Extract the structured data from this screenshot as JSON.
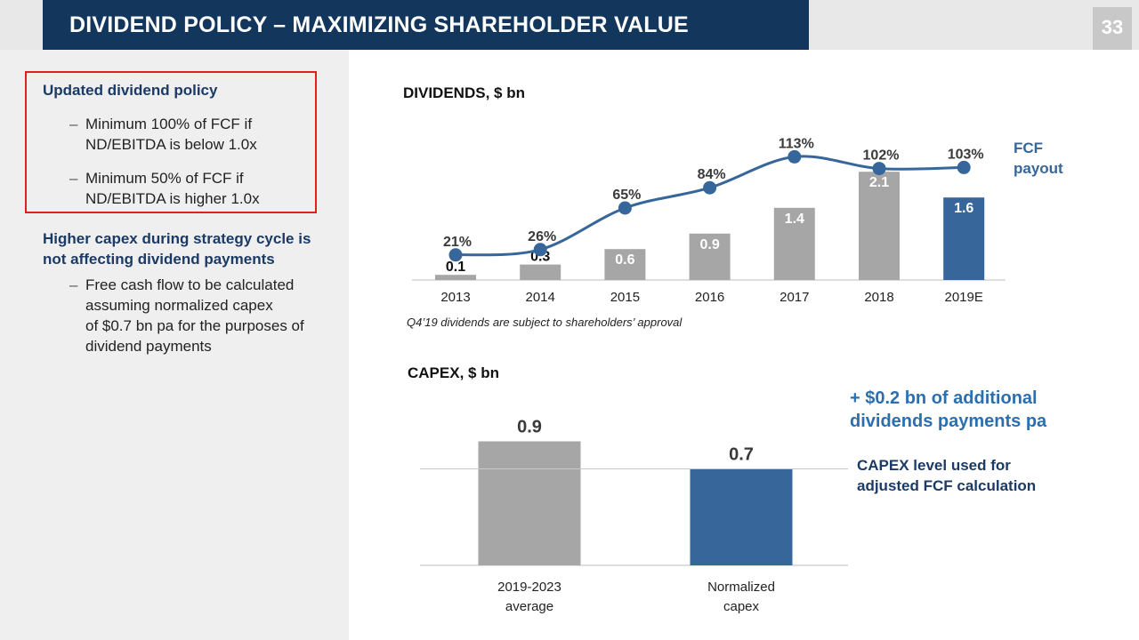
{
  "header": {
    "title": "DIVIDEND POLICY – MAXIMIZING SHAREHOLDER VALUE",
    "page_number": "33"
  },
  "left": {
    "policy_heading": "Updated dividend policy",
    "policy_bullets": [
      "Minimum 100% of FCF if\nND/EBITDA is below 1.0x",
      "Minimum 50% of FCF if\nND/EBITDA is higher 1.0x"
    ],
    "capex_heading": "Higher capex during strategy cycle is\nnot affecting dividend payments",
    "capex_bullets": [
      "Free cash flow to be calculated\nassuming normalized capex\nof $0.7 bn pa for the purposes of\ndividend payments"
    ]
  },
  "colors": {
    "navy": "#13365d",
    "blue": "#36669a",
    "gray": "#a6a6a6",
    "red_box": "#e0201b"
  },
  "chart_data": [
    {
      "type": "bar",
      "title": "DIVIDENDS, $ bn",
      "categories": [
        "2013",
        "2014",
        "2015",
        "2016",
        "2017",
        "2018",
        "2019E"
      ],
      "series": [
        {
          "values": [
            0.1,
            0.3,
            0.6,
            0.9,
            1.4,
            2.1,
            1.6
          ]
        },
        {
          "name": "FCF payout",
          "type": "line",
          "values": [
            21,
            26,
            65,
            84,
            113,
            102,
            103
          ],
          "labels": [
            "21%",
            "26%",
            "65%",
            "84%",
            "113%",
            "102%",
            "103%"
          ]
        }
      ],
      "highlight_category": "2019E",
      "note": "Q4’19 dividends are subject to shareholders’ approval"
    },
    {
      "type": "bar",
      "title": "CAPEX, $ bn",
      "categories": [
        "2019-2023\naverage",
        "Normalized\ncapex"
      ],
      "values": [
        0.9,
        0.7
      ],
      "reference_line": 0.7,
      "annotation_1": "+ $0.2 bn of additional\ndividends payments pa",
      "annotation_2": "CAPEX level used for\nadjusted FCF calculation"
    }
  ]
}
